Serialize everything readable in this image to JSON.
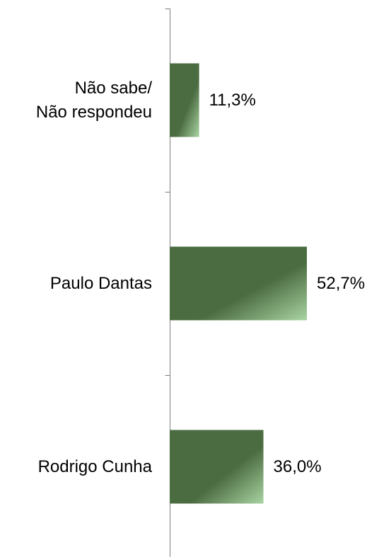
{
  "chart_data": {
    "type": "bar",
    "orientation": "horizontal",
    "categories": [
      [
        "Não sabe/",
        "Não respondeu"
      ],
      [
        "Paulo Dantas"
      ],
      [
        "Rodrigo Cunha"
      ]
    ],
    "values": [
      11.3,
      52.7,
      36.0
    ],
    "value_labels": [
      "11,3%",
      "52,7%",
      "36,0%"
    ],
    "xlim": [
      0,
      60
    ],
    "grid": false,
    "legend": "none",
    "bar_colors": {
      "dark": "#4b6b40",
      "light": "#a9d4a3"
    },
    "axis_color": "#7f7f7f"
  }
}
